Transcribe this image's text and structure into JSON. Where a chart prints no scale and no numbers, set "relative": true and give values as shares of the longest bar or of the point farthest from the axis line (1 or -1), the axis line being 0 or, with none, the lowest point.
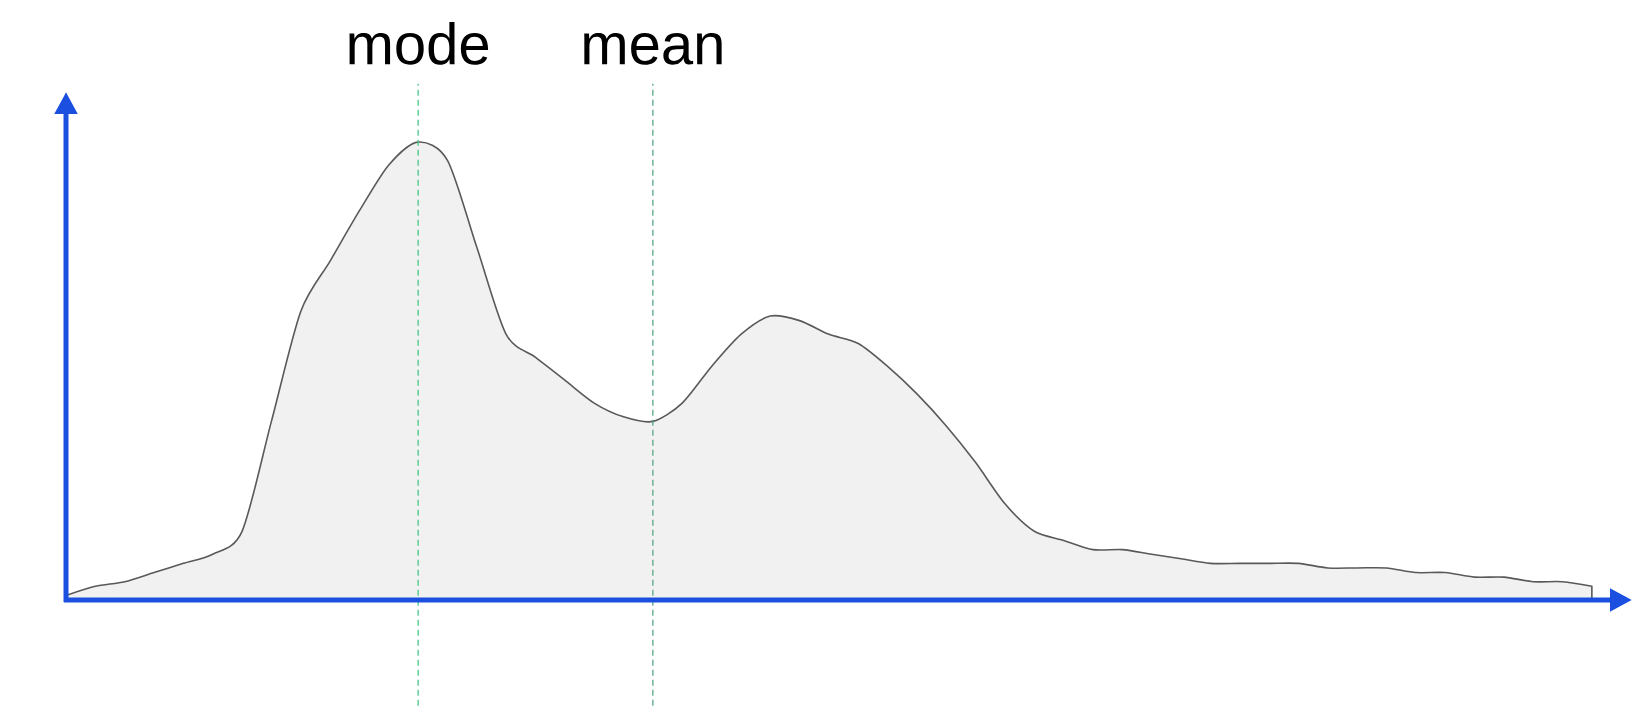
{
  "chart_data": {
    "type": "area",
    "relative": true,
    "categories": [
      null,
      null,
      null,
      null,
      null,
      null,
      null,
      null,
      null,
      null,
      null,
      null,
      null,
      null,
      null,
      null,
      null,
      null,
      null,
      null,
      null,
      null,
      null,
      null,
      null,
      null,
      null,
      null,
      null,
      null,
      null,
      null,
      null,
      null,
      null,
      null,
      null,
      null,
      null,
      null,
      null,
      null,
      null,
      null,
      null,
      null,
      null,
      null,
      null,
      null,
      null,
      null,
      null
    ],
    "values": [
      0.01,
      0.03,
      0.04,
      0.06,
      0.08,
      0.1,
      0.15,
      0.39,
      0.63,
      0.74,
      0.85,
      0.95,
      1,
      0.96,
      0.77,
      0.58,
      0.53,
      0.48,
      0.43,
      0.4,
      0.39,
      0.43,
      0.51,
      0.58,
      0.62,
      0.61,
      0.58,
      0.56,
      0.51,
      0.45,
      0.38,
      0.3,
      0.21,
      0.15,
      0.13,
      0.11,
      0.11,
      0.1,
      0.09,
      0.08,
      0.08,
      0.08,
      0.08,
      0.07,
      0.07,
      0.07,
      0.06,
      0.06,
      0.05,
      0.05,
      0.04,
      0.04,
      0.03
    ],
    "color": "#f1f1f1",
    "annotations": [
      "mode",
      "mean"
    ]
  }
}
